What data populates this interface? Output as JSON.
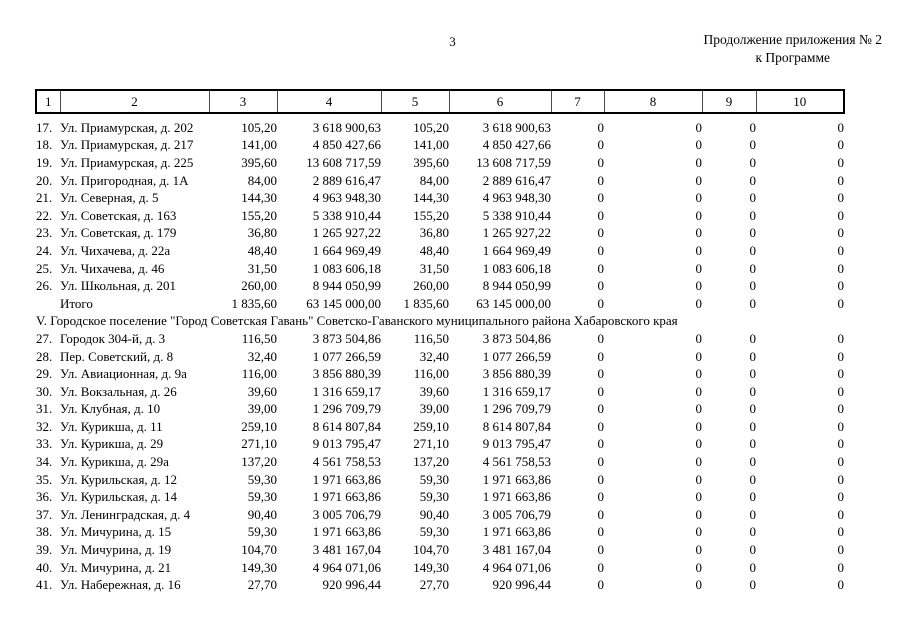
{
  "page_header": {
    "page_number": "3",
    "annex_line1": "Продолжение приложения № 2",
    "annex_line2": "к Программе"
  },
  "table": {
    "columns": [
      "1",
      "2",
      "3",
      "4",
      "5",
      "6",
      "7",
      "8",
      "9",
      "10"
    ],
    "rows": [
      {
        "type": "data",
        "n": "17.",
        "name": "Ул. Приамурская, д. 202",
        "c3": "105,20",
        "c4": "3 618 900,63",
        "c5": "105,20",
        "c6": "3 618 900,63",
        "c7": "0",
        "c8": "0",
        "c9": "0",
        "c10": "0"
      },
      {
        "type": "data",
        "n": "18.",
        "name": "Ул. Приамурская, д. 217",
        "c3": "141,00",
        "c4": "4 850 427,66",
        "c5": "141,00",
        "c6": "4 850 427,66",
        "c7": "0",
        "c8": "0",
        "c9": "0",
        "c10": "0"
      },
      {
        "type": "data",
        "n": "19.",
        "name": "Ул. Приамурская, д. 225",
        "c3": "395,60",
        "c4": "13 608 717,59",
        "c5": "395,60",
        "c6": "13 608 717,59",
        "c7": "0",
        "c8": "0",
        "c9": "0",
        "c10": "0"
      },
      {
        "type": "data",
        "n": "20.",
        "name": "Ул. Пригородная, д. 1А",
        "c3": "84,00",
        "c4": "2 889 616,47",
        "c5": "84,00",
        "c6": "2 889 616,47",
        "c7": "0",
        "c8": "0",
        "c9": "0",
        "c10": "0"
      },
      {
        "type": "data",
        "n": "21.",
        "name": "Ул. Северная, д. 5",
        "c3": "144,30",
        "c4": "4 963 948,30",
        "c5": "144,30",
        "c6": "4 963 948,30",
        "c7": "0",
        "c8": "0",
        "c9": "0",
        "c10": "0"
      },
      {
        "type": "data",
        "n": "22.",
        "name": "Ул. Советская, д. 163",
        "c3": "155,20",
        "c4": "5 338 910,44",
        "c5": "155,20",
        "c6": "5 338 910,44",
        "c7": "0",
        "c8": "0",
        "c9": "0",
        "c10": "0"
      },
      {
        "type": "data",
        "n": "23.",
        "name": "Ул. Советская, д. 179",
        "c3": "36,80",
        "c4": "1 265 927,22",
        "c5": "36,80",
        "c6": "1 265 927,22",
        "c7": "0",
        "c8": "0",
        "c9": "0",
        "c10": "0"
      },
      {
        "type": "data",
        "n": "24.",
        "name": "Ул. Чихачева, д. 22а",
        "c3": "48,40",
        "c4": "1 664 969,49",
        "c5": "48,40",
        "c6": "1 664 969,49",
        "c7": "0",
        "c8": "0",
        "c9": "0",
        "c10": "0"
      },
      {
        "type": "data",
        "n": "25.",
        "name": "Ул. Чихачева, д. 46",
        "c3": "31,50",
        "c4": "1 083 606,18",
        "c5": "31,50",
        "c6": "1 083 606,18",
        "c7": "0",
        "c8": "0",
        "c9": "0",
        "c10": "0"
      },
      {
        "type": "data",
        "n": "26.",
        "name": "Ул. Школьная, д. 201",
        "c3": "260,00",
        "c4": "8 944 050,99",
        "c5": "260,00",
        "c6": "8 944 050,99",
        "c7": "0",
        "c8": "0",
        "c9": "0",
        "c10": "0"
      },
      {
        "type": "total",
        "n": "",
        "name": "Итого",
        "c3": "1 835,60",
        "c4": "63 145 000,00",
        "c5": "1 835,60",
        "c6": "63 145 000,00",
        "c7": "0",
        "c8": "0",
        "c9": "0",
        "c10": "0"
      },
      {
        "type": "section",
        "label": "V. Городское поселение \"Город Советская Гавань\" Советско-Гаванского муниципального района Хабаровского края"
      },
      {
        "type": "data",
        "n": "27.",
        "name": "Городок 304-й, д. 3",
        "c3": "116,50",
        "c4": "3 873 504,86",
        "c5": "116,50",
        "c6": "3 873 504,86",
        "c7": "0",
        "c8": "0",
        "c9": "0",
        "c10": "0"
      },
      {
        "type": "data",
        "n": "28.",
        "name": "Пер. Советский, д. 8",
        "c3": "32,40",
        "c4": "1 077 266,59",
        "c5": "32,40",
        "c6": "1 077 266,59",
        "c7": "0",
        "c8": "0",
        "c9": "0",
        "c10": "0"
      },
      {
        "type": "data",
        "n": "29.",
        "name": "Ул. Авиационная, д. 9а",
        "c3": "116,00",
        "c4": "3 856 880,39",
        "c5": "116,00",
        "c6": "3 856 880,39",
        "c7": "0",
        "c8": "0",
        "c9": "0",
        "c10": "0"
      },
      {
        "type": "data",
        "n": "30.",
        "name": "Ул. Вокзальная, д. 26",
        "c3": "39,60",
        "c4": "1 316 659,17",
        "c5": "39,60",
        "c6": "1 316 659,17",
        "c7": "0",
        "c8": "0",
        "c9": "0",
        "c10": "0"
      },
      {
        "type": "data",
        "n": "31.",
        "name": "Ул. Клубная, д. 10",
        "c3": "39,00",
        "c4": "1 296 709,79",
        "c5": "39,00",
        "c6": "1 296 709,79",
        "c7": "0",
        "c8": "0",
        "c9": "0",
        "c10": "0"
      },
      {
        "type": "data",
        "n": "32.",
        "name": "Ул. Курикша, д. 11",
        "c3": "259,10",
        "c4": "8 614 807,84",
        "c5": "259,10",
        "c6": "8 614 807,84",
        "c7": "0",
        "c8": "0",
        "c9": "0",
        "c10": "0"
      },
      {
        "type": "data",
        "n": "33.",
        "name": "Ул. Курикша, д. 29",
        "c3": "271,10",
        "c4": "9 013 795,47",
        "c5": "271,10",
        "c6": "9 013 795,47",
        "c7": "0",
        "c8": "0",
        "c9": "0",
        "c10": "0"
      },
      {
        "type": "data",
        "n": "34.",
        "name": "Ул. Курикша, д. 29а",
        "c3": "137,20",
        "c4": "4 561 758,53",
        "c5": "137,20",
        "c6": "4 561 758,53",
        "c7": "0",
        "c8": "0",
        "c9": "0",
        "c10": "0"
      },
      {
        "type": "data",
        "n": "35.",
        "name": "Ул. Курильская, д. 12",
        "c3": "59,30",
        "c4": "1 971 663,86",
        "c5": "59,30",
        "c6": "1 971 663,86",
        "c7": "0",
        "c8": "0",
        "c9": "0",
        "c10": "0"
      },
      {
        "type": "data",
        "n": "36.",
        "name": "Ул. Курильская, д. 14",
        "c3": "59,30",
        "c4": "1 971 663,86",
        "c5": "59,30",
        "c6": "1 971 663,86",
        "c7": "0",
        "c8": "0",
        "c9": "0",
        "c10": "0"
      },
      {
        "type": "data",
        "n": "37.",
        "name": "Ул. Ленинградская, д. 4",
        "c3": "90,40",
        "c4": "3 005 706,79",
        "c5": "90,40",
        "c6": "3 005 706,79",
        "c7": "0",
        "c8": "0",
        "c9": "0",
        "c10": "0"
      },
      {
        "type": "data",
        "n": "38.",
        "name": "Ул. Мичурина, д. 15",
        "c3": "59,30",
        "c4": "1 971 663,86",
        "c5": "59,30",
        "c6": "1 971 663,86",
        "c7": "0",
        "c8": "0",
        "c9": "0",
        "c10": "0"
      },
      {
        "type": "data",
        "n": "39.",
        "name": "Ул. Мичурина, д. 19",
        "c3": "104,70",
        "c4": "3 481 167,04",
        "c5": "104,70",
        "c6": "3 481 167,04",
        "c7": "0",
        "c8": "0",
        "c9": "0",
        "c10": "0"
      },
      {
        "type": "data",
        "n": "40.",
        "name": "Ул. Мичурина, д. 21",
        "c3": "149,30",
        "c4": "4 964 071,06",
        "c5": "149,30",
        "c6": "4 964 071,06",
        "c7": "0",
        "c8": "0",
        "c9": "0",
        "c10": "0"
      },
      {
        "type": "data",
        "n": "41.",
        "name": "Ул. Набережная, д. 16",
        "c3": "27,70",
        "c4": "920 996,44",
        "c5": "27,70",
        "c6": "920 996,44",
        "c7": "0",
        "c8": "0",
        "c9": "0",
        "c10": "0"
      }
    ]
  }
}
